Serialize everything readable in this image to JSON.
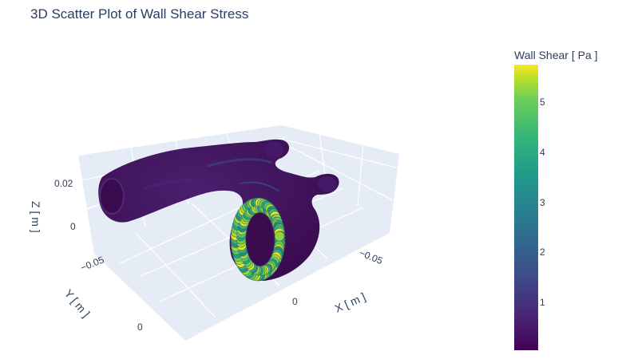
{
  "chart_data": {
    "type": "scatter3d",
    "title": "3D Scatter Plot of Wall Shear Stress",
    "xlabel": "X [ m ]",
    "ylabel": "Y [ m ]",
    "zlabel": "Z [ m ]",
    "x_ticks": [
      "−0.05",
      "0"
    ],
    "y_ticks": [
      "−0.05",
      "0"
    ],
    "z_ticks": [
      "0.02",
      "0"
    ],
    "colorbar": {
      "title": "Wall Shear [ Pa ]",
      "colorscale": "Viridis",
      "range": [
        0,
        5.7
      ],
      "ticks": [
        "1",
        "2",
        "3",
        "4",
        "5"
      ]
    },
    "colors": {
      "low": "#440154",
      "mid": "#21918c",
      "high": "#fde725",
      "scene_bg": "#e5ecf6"
    }
  }
}
